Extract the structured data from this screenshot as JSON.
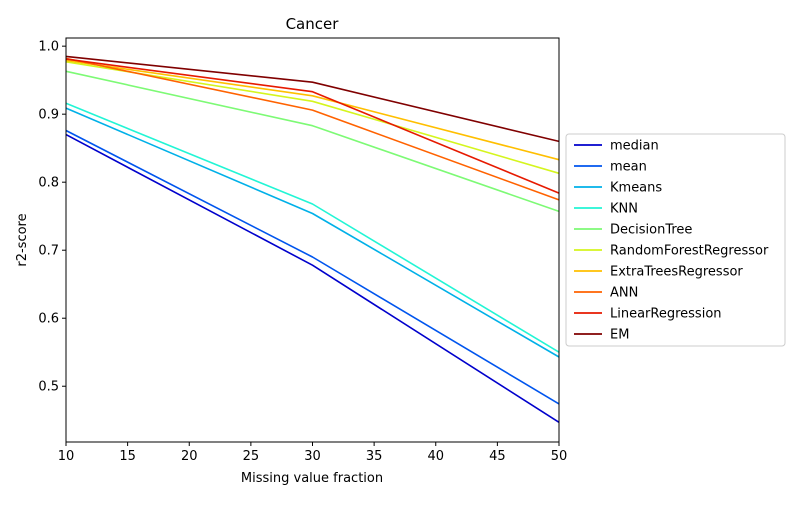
{
  "chart_data": {
    "type": "line",
    "title": "Cancer",
    "xlabel": "Missing value fraction",
    "ylabel": "r2-score",
    "x": [
      10,
      30,
      50
    ],
    "xlim": [
      10,
      50
    ],
    "ylim": [
      0.418,
      1.012
    ],
    "xticks": [
      10,
      15,
      20,
      25,
      30,
      35,
      40,
      45,
      50
    ],
    "yticks": [
      0.5,
      0.6,
      0.7,
      0.8,
      0.9,
      1.0
    ],
    "grid": false,
    "legend_position": "outside-right",
    "series": [
      {
        "name": "median",
        "color": "#0000cc",
        "values": [
          0.87,
          0.678,
          0.447
        ]
      },
      {
        "name": "mean",
        "color": "#0055ee",
        "values": [
          0.876,
          0.69,
          0.474
        ]
      },
      {
        "name": "Kmeans",
        "color": "#00b0e8",
        "values": [
          0.909,
          0.754,
          0.543
        ]
      },
      {
        "name": "KNN",
        "color": "#22f5d5",
        "values": [
          0.916,
          0.768,
          0.55
        ]
      },
      {
        "name": "DecisionTree",
        "color": "#7dfa75",
        "values": [
          0.963,
          0.883,
          0.757
        ]
      },
      {
        "name": "RandomForestRegressor",
        "color": "#d5f51e",
        "values": [
          0.977,
          0.919,
          0.813
        ]
      },
      {
        "name": "ExtraTreesRegressor",
        "color": "#ffbf00",
        "values": [
          0.979,
          0.927,
          0.833
        ]
      },
      {
        "name": "ANN",
        "color": "#ff6200",
        "values": [
          0.982,
          0.906,
          0.774
        ]
      },
      {
        "name": "LinearRegression",
        "color": "#e61a00",
        "values": [
          0.981,
          0.933,
          0.784
        ]
      },
      {
        "name": "EM",
        "color": "#800000",
        "values": [
          0.985,
          0.947,
          0.86
        ]
      }
    ]
  }
}
